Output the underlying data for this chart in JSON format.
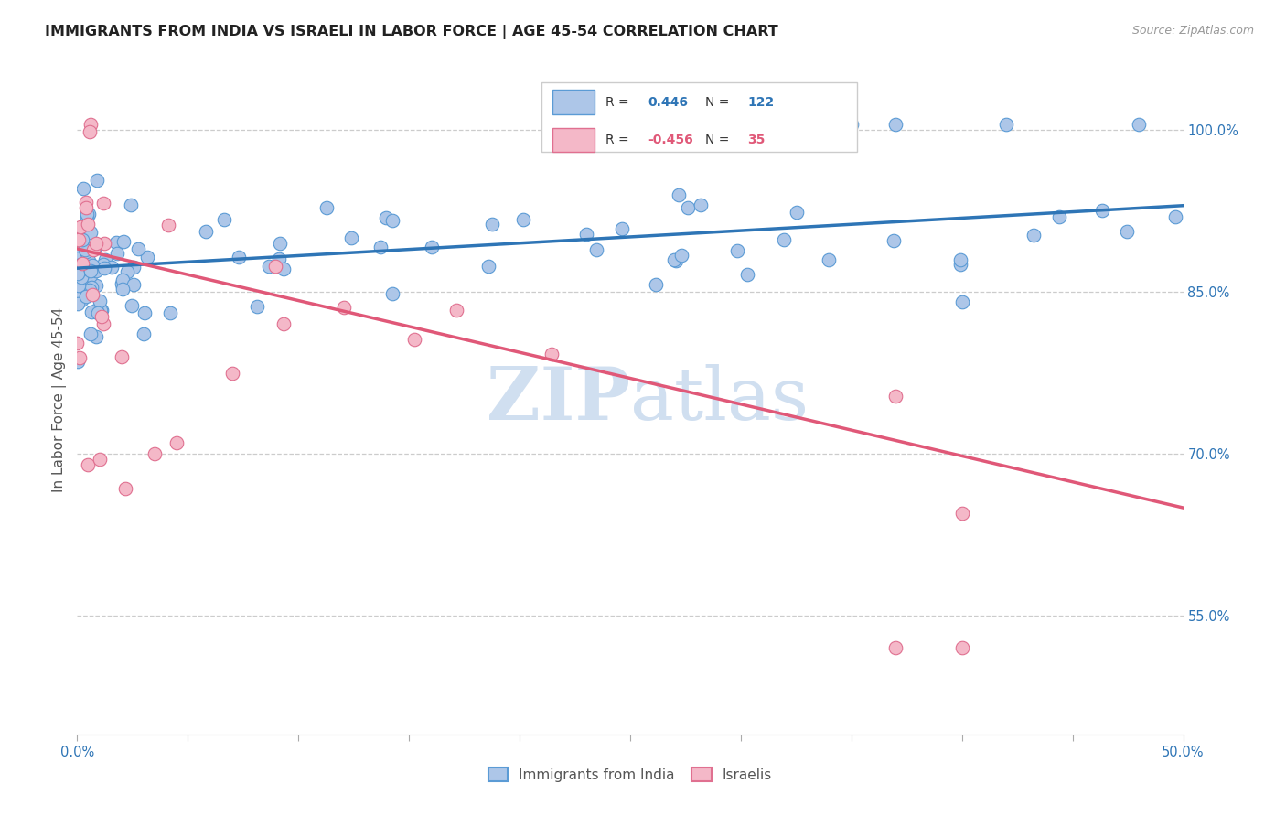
{
  "title": "IMMIGRANTS FROM INDIA VS ISRAELI IN LABOR FORCE | AGE 45-54 CORRELATION CHART",
  "source": "Source: ZipAtlas.com",
  "ylabel": "In Labor Force | Age 45-54",
  "xmin": 0.0,
  "xmax": 0.5,
  "ymin": 0.44,
  "ymax": 1.06,
  "right_yticks": [
    0.55,
    0.7,
    0.85,
    1.0
  ],
  "right_ytick_labels": [
    "55.0%",
    "70.0%",
    "85.0%",
    "100.0%"
  ],
  "legend_blue_r": "0.446",
  "legend_blue_n": "122",
  "legend_pink_r": "-0.456",
  "legend_pink_n": "35",
  "blue_color": "#adc6e8",
  "blue_edge_color": "#5b9bd5",
  "blue_line_color": "#2e75b6",
  "pink_color": "#f4b8c8",
  "pink_edge_color": "#e07090",
  "pink_line_color": "#e05878",
  "watermark_color": "#d0dff0",
  "blue_trend_x0": 0.0,
  "blue_trend_x1": 0.5,
  "blue_trend_y0": 0.872,
  "blue_trend_y1": 0.93,
  "pink_trend_x0": 0.0,
  "pink_trend_x1": 0.5,
  "pink_trend_y0": 0.89,
  "pink_trend_y1": 0.65
}
